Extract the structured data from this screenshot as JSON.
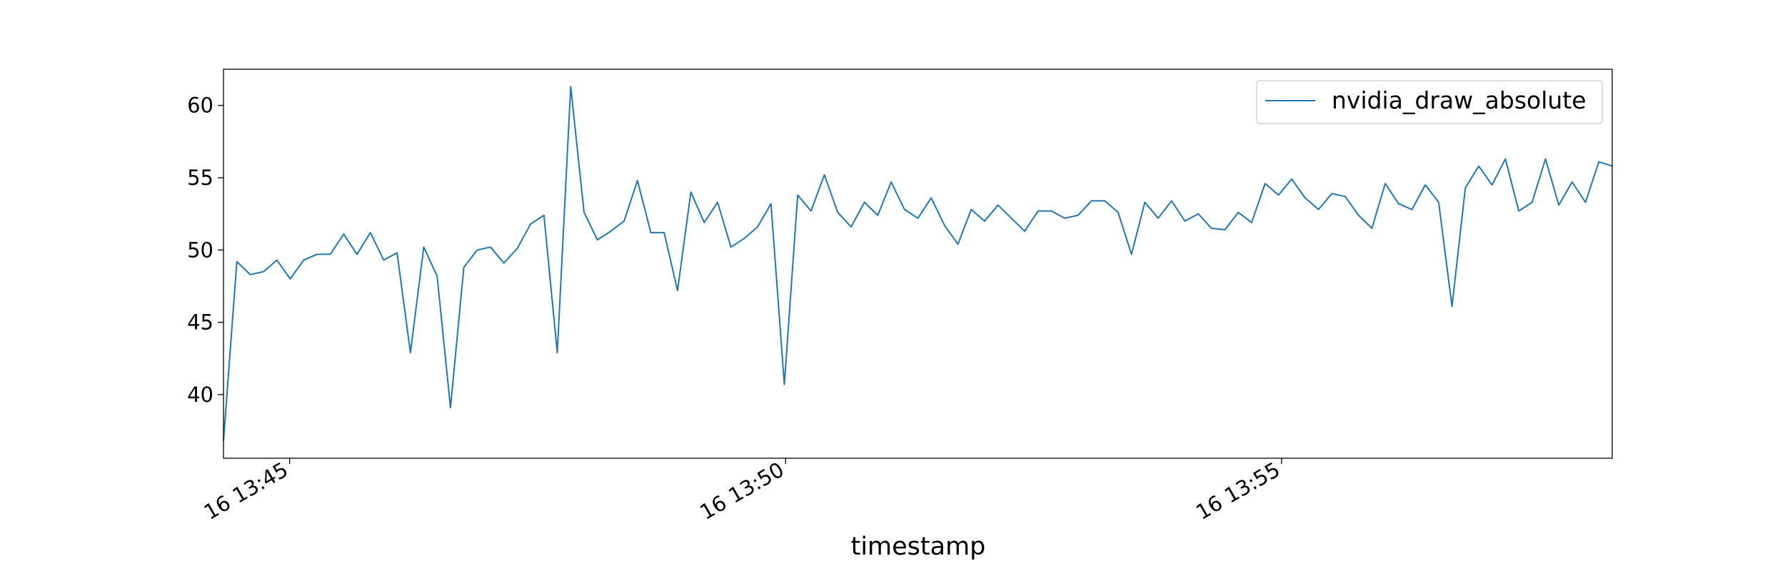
{
  "chart_data": {
    "type": "line",
    "xlabel": "timestamp",
    "ylabel": "",
    "title": "",
    "x_start": "16 13:44:20",
    "x_end": "16 13:58:20",
    "ylim": [
      35.6,
      62.5
    ],
    "y_ticks": [
      40,
      45,
      50,
      55,
      60
    ],
    "x_ticks": [
      {
        "label": "16 13:45",
        "time": "16 13:45:00"
      },
      {
        "label": "16 13:50",
        "time": "16 13:50:00"
      },
      {
        "label": "16 13:55",
        "time": "16 13:55:00"
      }
    ],
    "grid": false,
    "legend": {
      "position": "top-right"
    },
    "series": [
      {
        "name": "nvidia_draw_absolute",
        "color": "#1f77b4",
        "values": [
          36.8,
          49.2,
          48.3,
          48.5,
          49.3,
          48.0,
          49.3,
          49.7,
          49.7,
          51.1,
          49.7,
          51.2,
          49.3,
          49.8,
          42.9,
          50.2,
          48.2,
          39.1,
          48.8,
          50.0,
          50.2,
          49.1,
          50.1,
          51.8,
          52.4,
          42.9,
          61.3,
          52.6,
          50.7,
          51.3,
          52.0,
          54.8,
          51.2,
          51.2,
          47.2,
          54.0,
          51.9,
          53.3,
          50.2,
          50.8,
          51.6,
          53.2,
          40.7,
          53.8,
          52.7,
          55.2,
          52.6,
          51.6,
          53.3,
          52.4,
          54.7,
          52.8,
          52.2,
          53.6,
          51.7,
          50.4,
          52.8,
          52.0,
          53.1,
          52.2,
          51.3,
          52.7,
          52.7,
          52.2,
          52.4,
          53.4,
          53.4,
          52.6,
          49.7,
          53.3,
          52.2,
          53.4,
          52.0,
          52.5,
          51.5,
          51.4,
          52.6,
          51.9,
          54.6,
          53.8,
          54.9,
          53.6,
          52.8,
          53.9,
          53.7,
          52.4,
          51.5,
          54.6,
          53.2,
          52.8,
          54.5,
          53.3,
          46.1,
          54.3,
          55.8,
          54.5,
          56.3,
          52.7,
          53.3,
          56.3,
          53.1,
          54.7,
          53.3,
          56.1,
          55.8
        ]
      }
    ]
  }
}
